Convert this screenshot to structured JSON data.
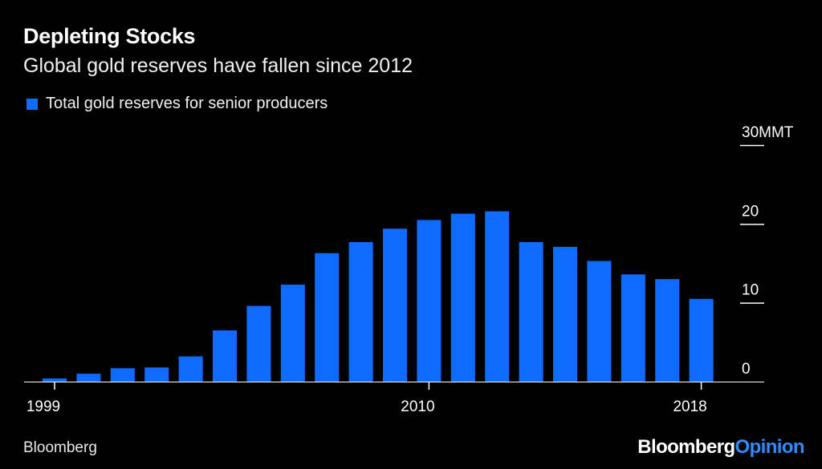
{
  "colors": {
    "background": "#000000",
    "bar": "#0f6bff",
    "text": "#ffffff",
    "axis": "#ffffff"
  },
  "footer": {
    "source": "Bloomberg",
    "brand_part1": "Bloomberg",
    "brand_part2": "Opinion"
  },
  "chart_data": {
    "type": "bar",
    "title": "Depleting Stocks",
    "subtitle": "Global gold reserves have fallen since 2012",
    "legend": [
      "Total gold reserves for senior producers"
    ],
    "categories": [
      1999,
      2000,
      2001,
      2002,
      2003,
      2004,
      2005,
      2006,
      2007,
      2008,
      2009,
      2010,
      2011,
      2012,
      2013,
      2014,
      2015,
      2016,
      2017,
      2018
    ],
    "values": [
      0.4,
      1.0,
      1.7,
      1.8,
      3.2,
      6.5,
      9.6,
      12.3,
      16.3,
      17.7,
      19.4,
      20.5,
      21.3,
      21.6,
      17.7,
      17.1,
      15.3,
      13.6,
      13.0,
      10.5
    ],
    "x_tick_labels": [
      "1999",
      "2010",
      "2018"
    ],
    "y_ticks": [
      {
        "value": 0,
        "label": "0"
      },
      {
        "value": 10,
        "label": "10"
      },
      {
        "value": 20,
        "label": "20"
      },
      {
        "value": 30,
        "label": "30MMT"
      }
    ],
    "ylim": [
      0,
      30
    ],
    "xlabel": "",
    "ylabel": "MMT"
  }
}
